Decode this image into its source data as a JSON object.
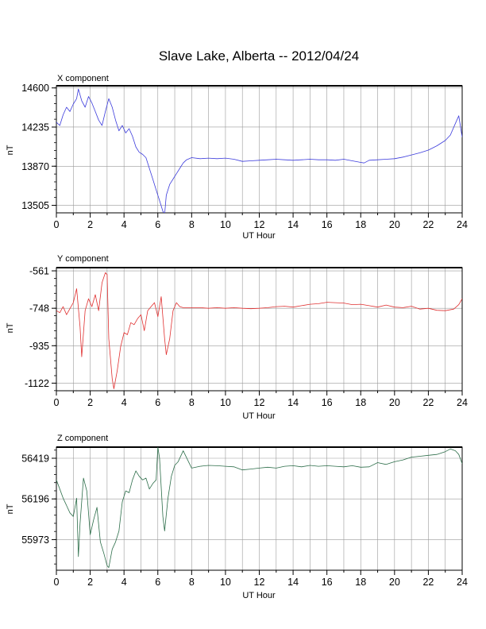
{
  "figure": {
    "title": "Slave Lake, Alberta -- 2012/04/24"
  },
  "chart_data": [
    {
      "type": "line",
      "panel_label": "X component",
      "title": "X component",
      "xlabel": "UT Hour",
      "ylabel": "nT",
      "xlim": [
        0,
        24
      ],
      "ylim": [
        13435,
        14620
      ],
      "xticks": [
        0,
        2,
        4,
        6,
        8,
        10,
        12,
        14,
        16,
        18,
        20,
        22,
        24
      ],
      "xtick_labels": [
        "0",
        "2",
        "4",
        "6",
        "8",
        "10",
        "12",
        "14",
        "16",
        "18",
        "20",
        "22",
        "24"
      ],
      "yticks": [
        14600,
        14235,
        13870,
        13505
      ],
      "ytick_labels": [
        "14600",
        "14235",
        "13870",
        "13505"
      ],
      "grid": true,
      "color": "#3b3bdc",
      "series": [
        {
          "x": [
            0,
            0.2,
            0.4,
            0.6,
            0.8,
            1.0,
            1.2,
            1.3,
            1.5,
            1.7,
            1.9,
            2.1,
            2.3,
            2.5,
            2.7,
            2.9,
            3.1,
            3.3,
            3.5,
            3.7,
            3.9,
            4.1,
            4.3,
            4.5,
            4.7,
            4.9,
            5.1,
            5.3,
            5.5,
            5.7,
            5.9,
            6.1,
            6.3,
            6.4,
            6.5,
            6.7,
            6.9,
            7.1,
            7.3,
            7.5,
            7.7,
            8,
            8.5,
            9,
            9.5,
            10,
            10.5,
            11,
            11.5,
            12,
            12.5,
            13,
            13.5,
            14,
            14.5,
            15,
            15.5,
            16,
            16.5,
            17,
            17.5,
            18,
            18.2,
            18.5,
            19,
            19.5,
            20,
            20.5,
            21,
            21.5,
            22,
            22.5,
            23,
            23.3,
            23.6,
            23.8,
            24
          ],
          "y": [
            14280,
            14250,
            14350,
            14420,
            14380,
            14450,
            14500,
            14590,
            14480,
            14420,
            14520,
            14460,
            14380,
            14300,
            14250,
            14380,
            14500,
            14420,
            14300,
            14200,
            14250,
            14180,
            14220,
            14150,
            14050,
            14000,
            13980,
            13950,
            13850,
            13750,
            13650,
            13550,
            13450,
            13420,
            13600,
            13700,
            13750,
            13800,
            13850,
            13900,
            13930,
            13950,
            13940,
            13945,
            13940,
            13945,
            13935,
            13915,
            13920,
            13925,
            13930,
            13935,
            13930,
            13925,
            13930,
            13935,
            13930,
            13930,
            13925,
            13935,
            13920,
            13905,
            13900,
            13925,
            13930,
            13935,
            13940,
            13955,
            13975,
            13995,
            14020,
            14060,
            14110,
            14160,
            14270,
            14340,
            14140
          ]
        }
      ]
    },
    {
      "type": "line",
      "panel_label": "Y component",
      "title": "Y component",
      "xlabel": "UT Hour",
      "ylabel": "nT",
      "xlim": [
        0,
        24
      ],
      "ylim": [
        -1160,
        -545
      ],
      "xticks": [
        0,
        2,
        4,
        6,
        8,
        10,
        12,
        14,
        16,
        18,
        20,
        22,
        24
      ],
      "xtick_labels": [
        "0",
        "2",
        "4",
        "6",
        "8",
        "10",
        "12",
        "14",
        "16",
        "18",
        "20",
        "22",
        "24"
      ],
      "yticks": [
        -561,
        -748,
        -935,
        -1122
      ],
      "ytick_labels": [
        "-561",
        "-748",
        "-935",
        "-1122"
      ],
      "grid": true,
      "color": "#e03030",
      "series": [
        {
          "x": [
            0,
            0.2,
            0.4,
            0.6,
            0.8,
            1.0,
            1.2,
            1.4,
            1.5,
            1.7,
            1.9,
            2.1,
            2.3,
            2.5,
            2.7,
            2.9,
            3.0,
            3.1,
            3.3,
            3.4,
            3.6,
            3.8,
            4.0,
            4.2,
            4.4,
            4.6,
            4.8,
            5.0,
            5.2,
            5.4,
            5.6,
            5.8,
            6.0,
            6.2,
            6.4,
            6.5,
            6.7,
            6.9,
            7.1,
            7.3,
            7.5,
            8,
            8.5,
            9,
            9.5,
            10,
            10.5,
            11,
            11.5,
            12,
            12.5,
            13,
            13.5,
            14,
            14.5,
            15,
            15.5,
            16,
            16.5,
            17,
            17.5,
            18,
            18.5,
            19,
            19.5,
            20,
            20.5,
            21,
            21.5,
            22,
            22.5,
            23,
            23.5,
            23.8,
            24
          ],
          "y": [
            -760,
            -770,
            -740,
            -780,
            -750,
            -720,
            -650,
            -840,
            -990,
            -760,
            -700,
            -740,
            -680,
            -760,
            -620,
            -570,
            -580,
            -900,
            -1100,
            -1150,
            -1060,
            -940,
            -870,
            -880,
            -820,
            -830,
            -800,
            -780,
            -860,
            -760,
            -740,
            -720,
            -790,
            -690,
            -900,
            -980,
            -900,
            -760,
            -720,
            -740,
            -745,
            -745,
            -745,
            -748,
            -745,
            -748,
            -745,
            -748,
            -750,
            -748,
            -745,
            -740,
            -738,
            -742,
            -735,
            -728,
            -725,
            -718,
            -720,
            -722,
            -730,
            -728,
            -735,
            -742,
            -732,
            -742,
            -745,
            -738,
            -752,
            -748,
            -758,
            -760,
            -752,
            -730,
            -700
          ]
        }
      ]
    },
    {
      "type": "line",
      "panel_label": "Z component",
      "title": "Z component",
      "xlabel": "UT Hour",
      "ylabel": "nT",
      "xlim": [
        0,
        24
      ],
      "ylim": [
        55805,
        56480
      ],
      "xticks": [
        0,
        2,
        4,
        6,
        8,
        10,
        12,
        14,
        16,
        18,
        20,
        22,
        24
      ],
      "xtick_labels": [
        "0",
        "2",
        "4",
        "6",
        "8",
        "10",
        "12",
        "14",
        "16",
        "18",
        "20",
        "22",
        "24"
      ],
      "yticks": [
        56419,
        56196,
        55973
      ],
      "ytick_labels": [
        "56419",
        "56196",
        "55973"
      ],
      "grid": true,
      "color": "#2d6e4a",
      "series": [
        {
          "x": [
            0,
            0.2,
            0.4,
            0.6,
            0.8,
            1.0,
            1.2,
            1.3,
            1.4,
            1.6,
            1.8,
            2.0,
            2.2,
            2.4,
            2.6,
            2.8,
            3.0,
            3.1,
            3.3,
            3.5,
            3.7,
            3.9,
            4.1,
            4.3,
            4.5,
            4.7,
            4.9,
            5.1,
            5.3,
            5.5,
            5.7,
            5.9,
            6.0,
            6.1,
            6.3,
            6.4,
            6.6,
            6.8,
            7.0,
            7.2,
            7.5,
            8,
            8.5,
            9,
            9.5,
            10,
            10.5,
            11,
            11.5,
            12,
            12.5,
            13,
            13.5,
            14,
            14.5,
            15,
            15.5,
            16,
            16.5,
            17,
            17.5,
            18,
            18.5,
            19,
            19.5,
            20,
            20.5,
            21,
            21.5,
            22,
            22.5,
            23,
            23.3,
            23.6,
            23.8,
            24
          ],
          "y": [
            56300,
            56250,
            56200,
            56160,
            56120,
            56100,
            56200,
            55880,
            56060,
            56310,
            56240,
            56000,
            56080,
            56150,
            55960,
            55900,
            55830,
            55820,
            55920,
            55960,
            56020,
            56180,
            56240,
            56230,
            56300,
            56350,
            56320,
            56300,
            56310,
            56250,
            56280,
            56300,
            56480,
            56420,
            56100,
            56020,
            56200,
            56320,
            56380,
            56400,
            56460,
            56365,
            56375,
            56380,
            56378,
            56375,
            56372,
            56355,
            56360,
            56365,
            56370,
            56365,
            56375,
            56378,
            56372,
            56380,
            56375,
            56378,
            56375,
            56372,
            56378,
            56370,
            56372,
            56395,
            56385,
            56400,
            56410,
            56425,
            56430,
            56435,
            56440,
            56455,
            56470,
            56460,
            56440,
            56390
          ]
        }
      ]
    }
  ]
}
